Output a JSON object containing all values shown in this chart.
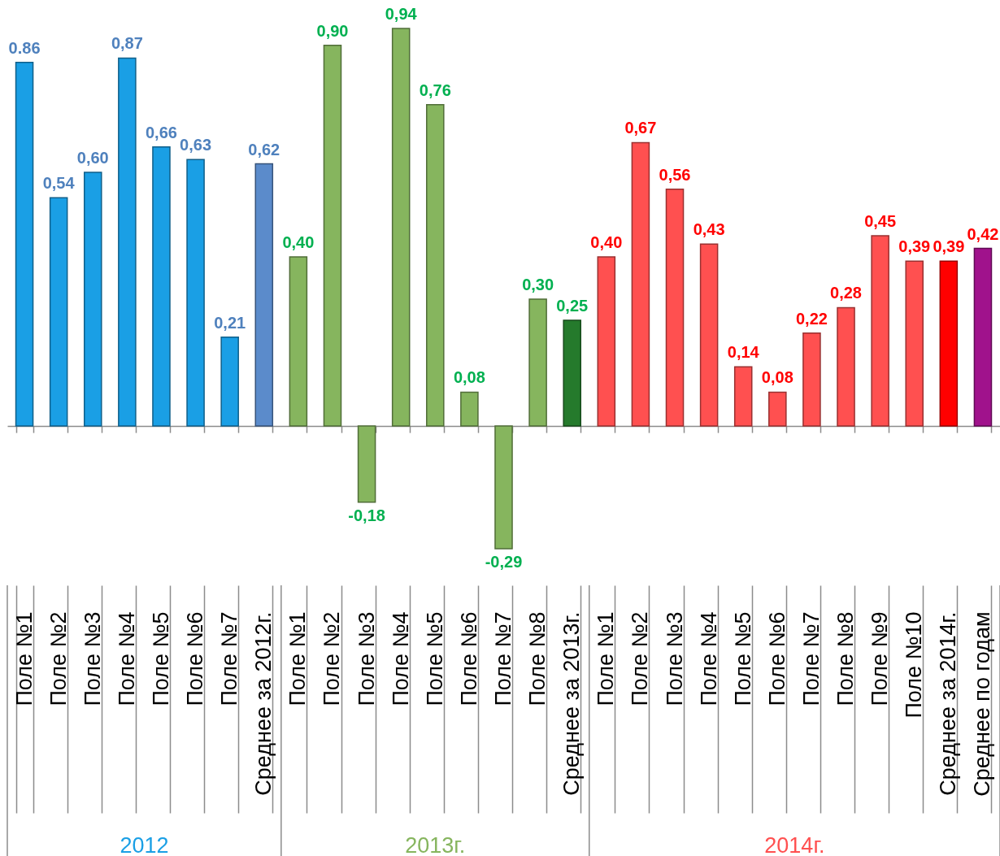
{
  "chart_data": {
    "type": "bar",
    "categories": [
      "Поле №1",
      "Поле №2",
      "Поле №3",
      "Поле №4",
      "Поле №5",
      "Поле №6",
      "Поле №7",
      "Среднее за 2012г.",
      "Поле №1",
      "Поле №2",
      "Поле №3",
      "Поле №4",
      "Поле №5",
      "Поле №6",
      "Поле №7",
      "Поле №8",
      "Среднее за 2013г.",
      "Поле №1",
      "Поле №2",
      "Поле №3",
      "Поле №4",
      "Поле №5",
      "Поле №6",
      "Поле №7",
      "Поле №8",
      "Поле №9",
      "Поле №10",
      "Среднее за 2014г.",
      "Среднее по годам"
    ],
    "series": [
      {
        "name": "2012",
        "color": "#4f81bd",
        "values": [
          0.86,
          0.54,
          0.6,
          0.87,
          0.66,
          0.63,
          0.21,
          0.62,
          null,
          null,
          null,
          null,
          null,
          null,
          null,
          null,
          null,
          null,
          null,
          null,
          null,
          null,
          null,
          null,
          null,
          null,
          null,
          null,
          null
        ],
        "colors": [
          "#1a9fe5",
          "#1a9fe5",
          "#1a9fe5",
          "#1a9fe5",
          "#1a9fe5",
          "#1a9fe5",
          "#1a9fe5",
          "#5b8bcb",
          null,
          null,
          null,
          null,
          null,
          null,
          null,
          null,
          null,
          null,
          null,
          null,
          null,
          null,
          null,
          null,
          null,
          null,
          null,
          null,
          null
        ],
        "value_labels": [
          "0.86",
          "0,54",
          "0,60",
          "0,87",
          "0,66",
          "0,63",
          "0,21",
          "0,62",
          null,
          null,
          null,
          null,
          null,
          null,
          null,
          null,
          null,
          null,
          null,
          null,
          null,
          null,
          null,
          null,
          null,
          null,
          null,
          null,
          null
        ]
      },
      {
        "name": "2013г.",
        "color": "#00b050",
        "values": [
          null,
          null,
          null,
          null,
          null,
          null,
          null,
          null,
          0.4,
          0.9,
          -0.18,
          0.94,
          0.76,
          0.08,
          -0.29,
          0.3,
          0.25,
          null,
          null,
          null,
          null,
          null,
          null,
          null,
          null,
          null,
          null,
          null,
          null
        ],
        "colors": [
          null,
          null,
          null,
          null,
          null,
          null,
          null,
          null,
          "#86b55e",
          "#86b55e",
          "#86b55e",
          "#86b55e",
          "#86b55e",
          "#86b55e",
          "#86b55e",
          "#86b55e",
          "#257a2c",
          null,
          null,
          null,
          null,
          null,
          null,
          null,
          null,
          null,
          null,
          null,
          null
        ],
        "value_labels": [
          null,
          null,
          null,
          null,
          null,
          null,
          null,
          null,
          "0,40",
          "0,90",
          "-0,18",
          "0,94",
          "0,76",
          "0,08",
          "-0,29",
          "0,30",
          "0,25",
          null,
          null,
          null,
          null,
          null,
          null,
          null,
          null,
          null,
          null,
          null,
          null
        ]
      },
      {
        "name": "2014г.",
        "color": "#ff0000",
        "values": [
          null,
          null,
          null,
          null,
          null,
          null,
          null,
          null,
          null,
          null,
          null,
          null,
          null,
          null,
          null,
          null,
          null,
          0.4,
          0.67,
          0.56,
          0.43,
          0.14,
          0.08,
          0.22,
          0.28,
          0.45,
          0.39,
          0.39,
          0.42
        ],
        "colors": [
          null,
          null,
          null,
          null,
          null,
          null,
          null,
          null,
          null,
          null,
          null,
          null,
          null,
          null,
          null,
          null,
          null,
          "#ff5050",
          "#ff5050",
          "#ff5050",
          "#ff5050",
          "#ff5050",
          "#ff5050",
          "#ff5050",
          "#ff5050",
          "#ff5050",
          "#ff5050",
          "#ff0000",
          "#a0128c"
        ],
        "value_labels": [
          null,
          null,
          null,
          null,
          null,
          null,
          null,
          null,
          null,
          null,
          null,
          null,
          null,
          null,
          null,
          null,
          null,
          "0,40",
          "0,67",
          "0,56",
          "0,43",
          "0,14",
          "0,08",
          "0,22",
          "0,28",
          "0,45",
          "0,39",
          "0,39",
          "0,42"
        ]
      }
    ]
  }
}
